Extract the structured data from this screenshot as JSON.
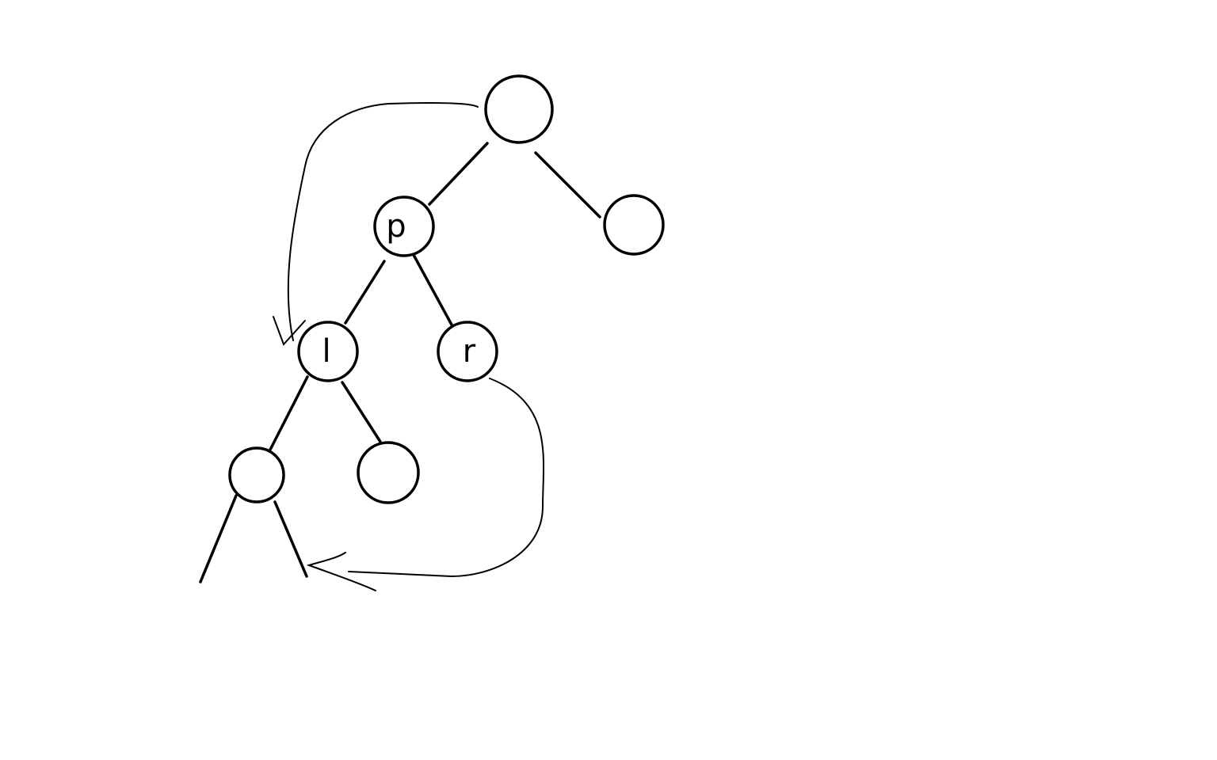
{
  "nodes": [
    {
      "label": "p"
    },
    {
      "label": "l"
    },
    {
      "label": "r"
    }
  ]
}
